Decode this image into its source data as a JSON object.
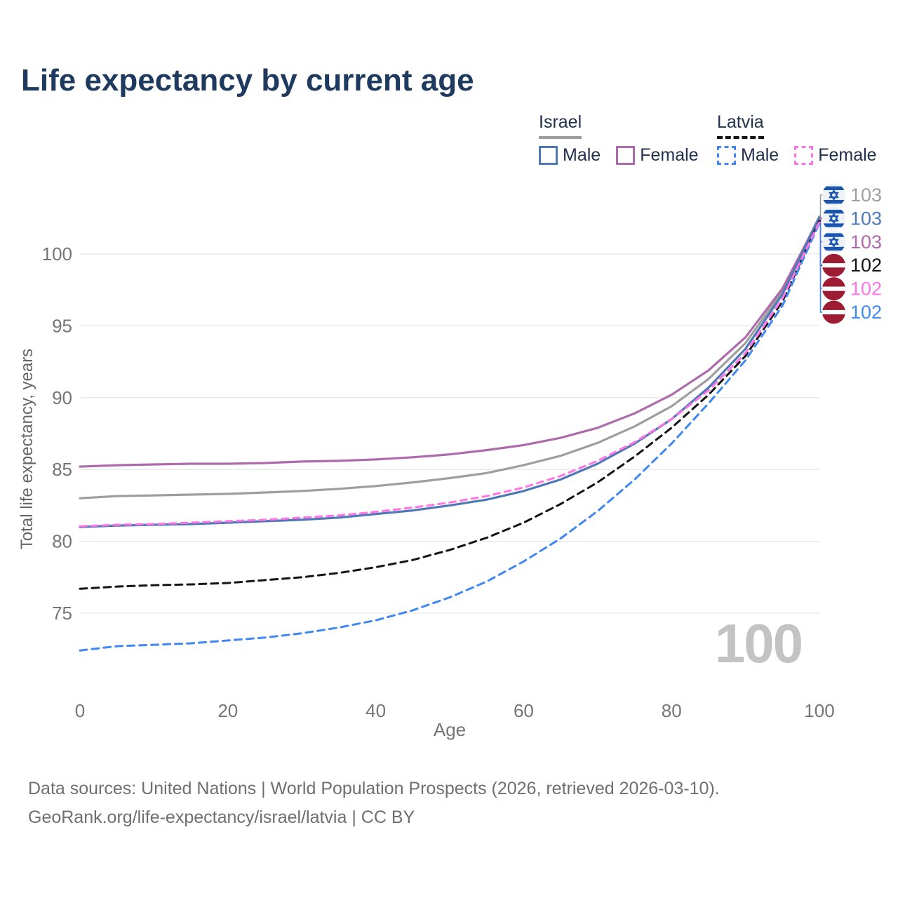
{
  "title": {
    "text": "Life expectancy by current age",
    "color": "#1e3a5f"
  },
  "legend": {
    "text_color": "#22314f",
    "groups": [
      {
        "name": "Israel",
        "underline_style": "solid",
        "underline_color": "#9e9e9e",
        "items": [
          {
            "label": "Male",
            "color": "#4e79b7",
            "dashed": false
          },
          {
            "label": "Female",
            "color": "#ae6bab",
            "dashed": false
          }
        ]
      },
      {
        "name": "Latvia",
        "underline_style": "dashed",
        "underline_color": "#141414",
        "items": [
          {
            "label": "Male",
            "color": "#3f87f5",
            "dashed": true
          },
          {
            "label": "Female",
            "color": "#ff74e4",
            "dashed": true
          }
        ]
      }
    ]
  },
  "chart_data": {
    "type": "line",
    "title": "Life expectancy by current age",
    "xlabel": "Age",
    "ylabel": "Total life expectancy, years",
    "x": [
      0,
      5,
      10,
      15,
      20,
      25,
      30,
      35,
      40,
      45,
      50,
      55,
      60,
      65,
      70,
      75,
      80,
      85,
      90,
      95,
      100
    ],
    "x_ticks": [
      0,
      20,
      40,
      60,
      80,
      100
    ],
    "y_ticks": [
      75,
      80,
      85,
      90,
      95,
      100
    ],
    "xlim": [
      0,
      100
    ],
    "ylim": [
      71.5,
      103
    ],
    "grid": "horizontal-only",
    "legend_position": "top-right",
    "series": [
      {
        "name": "Israel",
        "group": "Israel",
        "kind": "total",
        "color": "#9e9e9e",
        "dash": "solid",
        "end_label": "103",
        "flag": "israel",
        "values": [
          83.0,
          83.15,
          83.2,
          83.25,
          83.3,
          83.4,
          83.5,
          83.65,
          83.85,
          84.1,
          84.4,
          84.75,
          85.3,
          85.95,
          86.85,
          88.0,
          89.4,
          91.3,
          93.8,
          97.4,
          102.62
        ]
      },
      {
        "name": "Israel Male",
        "group": "Israel",
        "kind": "male",
        "color": "#4e79b7",
        "dash": "solid",
        "end_label": "103",
        "flag": "israel",
        "values": [
          81.0,
          81.1,
          81.15,
          81.2,
          81.3,
          81.4,
          81.5,
          81.65,
          81.9,
          82.15,
          82.5,
          82.9,
          83.5,
          84.3,
          85.4,
          86.8,
          88.5,
          90.7,
          93.4,
          97.2,
          102.55
        ]
      },
      {
        "name": "Israel Female",
        "group": "Israel",
        "kind": "female",
        "color": "#ae6bab",
        "dash": "solid",
        "end_label": "103",
        "flag": "israel",
        "values": [
          85.2,
          85.3,
          85.35,
          85.4,
          85.4,
          85.45,
          85.55,
          85.6,
          85.7,
          85.85,
          86.05,
          86.35,
          86.7,
          87.2,
          87.9,
          88.9,
          90.2,
          91.9,
          94.2,
          97.6,
          102.5
        ]
      },
      {
        "name": "Latvia",
        "group": "Latvia",
        "kind": "total",
        "color": "#141414",
        "dash": "10 7",
        "end_label": "102",
        "flag": "latvia",
        "values": [
          76.7,
          76.85,
          76.95,
          77.0,
          77.1,
          77.3,
          77.5,
          77.8,
          78.2,
          78.7,
          79.4,
          80.25,
          81.3,
          82.6,
          84.1,
          85.9,
          87.9,
          90.2,
          92.9,
          96.7,
          102.3
        ]
      },
      {
        "name": "Latvia Male",
        "group": "Latvia",
        "kind": "male",
        "color": "#3f87f5",
        "dash": "10 7",
        "end_label": "102",
        "flag": "latvia",
        "values": [
          72.4,
          72.7,
          72.8,
          72.9,
          73.1,
          73.3,
          73.6,
          74.0,
          74.5,
          75.2,
          76.1,
          77.2,
          78.6,
          80.2,
          82.1,
          84.3,
          86.8,
          89.6,
          92.6,
          96.4,
          102.15
        ]
      },
      {
        "name": "Latvia Female",
        "group": "Latvia",
        "kind": "female",
        "color": "#ff74e4",
        "dash": "9 7",
        "end_label": "102",
        "flag": "latvia",
        "values": [
          81.05,
          81.15,
          81.2,
          81.3,
          81.4,
          81.5,
          81.65,
          81.8,
          82.05,
          82.35,
          82.7,
          83.15,
          83.75,
          84.55,
          85.6,
          86.9,
          88.5,
          90.5,
          93.1,
          96.9,
          102.22
        ]
      }
    ],
    "end_label_order_top_to_bottom": [
      "Israel",
      "Israel Male",
      "Israel Female",
      "Latvia",
      "Latvia Female",
      "Latvia Male"
    ]
  },
  "watermark": {
    "text": "100",
    "color": "#c3c3c3"
  },
  "axis": {
    "tick_color": "#757575",
    "axis_title_color": "#666666",
    "grid_color": "#e7e7e7"
  },
  "flags": {
    "israel_blue": "#1b55b0",
    "latvia_red": "#9d1b33"
  },
  "footer": {
    "line1": "Data sources: United Nations | World Population Prospects (2026, retrieved 2026-03-10).",
    "line2": "GeoRank.org/life-expectancy/israel/latvia | CC BY"
  }
}
